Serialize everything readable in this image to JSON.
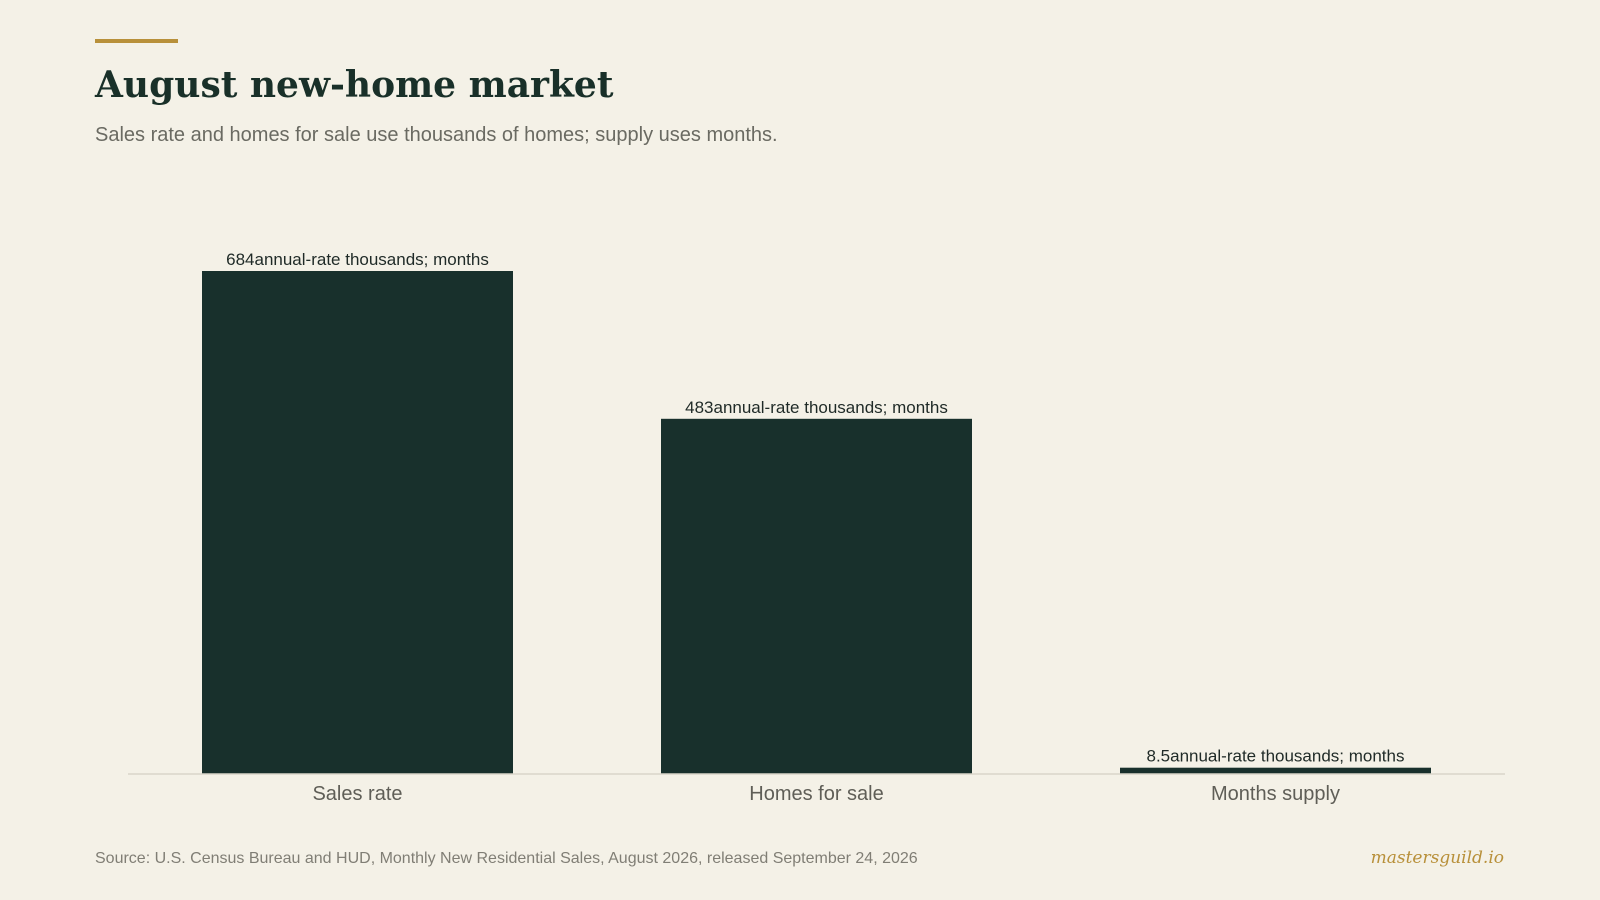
{
  "header": {
    "title": "August new-home market",
    "subtitle": "Sales rate and homes for sale use thousands of homes; supply uses months."
  },
  "chart_data": {
    "type": "bar",
    "categories": [
      "Sales rate",
      "Homes for sale",
      "Months supply"
    ],
    "values": [
      684,
      483,
      8.5
    ],
    "value_labels": [
      "684annual-rate thousands; months",
      "483annual-rate thousands; months",
      "8.5annual-rate thousands; months"
    ],
    "title": "August new-home market",
    "subtitle": "Sales rate and homes for sale use thousands of homes; supply uses months.",
    "xlabel": "",
    "ylabel": "",
    "ylim": [
      0,
      684
    ],
    "grid": false,
    "legend": "none"
  },
  "footer": {
    "source": "Source: U.S. Census Bureau and HUD, Monthly New Residential Sales, August 2026, released September 24, 2026",
    "brand": "mastersguild.io"
  },
  "colors": {
    "background": "#f4f1e7",
    "bar": "#18302c",
    "accent": "#b8903a",
    "title": "#193029",
    "axis": "#d9d5ca",
    "value_label": "#1f2a27",
    "category_label": "#5f5e57",
    "subtitle": "#6a6a62",
    "source": "#807e75"
  }
}
